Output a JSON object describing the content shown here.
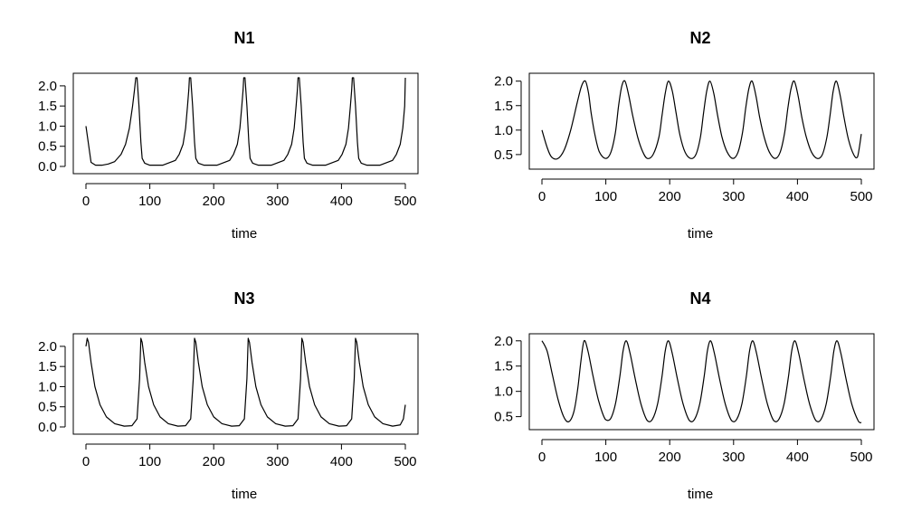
{
  "chart_data": [
    {
      "type": "line",
      "title": "N1",
      "xlabel": "time",
      "ylabel": "",
      "xlim": [
        0,
        500
      ],
      "ylim": [
        0,
        2.2
      ],
      "xticks": [
        "0",
        "100",
        "200",
        "300",
        "400",
        "500"
      ],
      "yticks": [
        "0.0",
        "0.5",
        "1.0",
        "1.5",
        "2.0"
      ],
      "grid": false,
      "shape": "spike",
      "series": [
        {
          "x": [
            0,
            8,
            15,
            25,
            35,
            45,
            55,
            62,
            68,
            73,
            76,
            78,
            80,
            83,
            86,
            88,
            92,
            100,
            120,
            140,
            146,
            152,
            156,
            159,
            161,
            162,
            164,
            167,
            170,
            172,
            176,
            185,
            205,
            225,
            231,
            237,
            241,
            244,
            246,
            247,
            249,
            252,
            255,
            257,
            261,
            270,
            290,
            310,
            316,
            322,
            326,
            329,
            331,
            332,
            334,
            337,
            340,
            342,
            346,
            355,
            375,
            395,
            401,
            407,
            411,
            414,
            416,
            417,
            419,
            422,
            425,
            427,
            431,
            440,
            460,
            480,
            486,
            492,
            496,
            499,
            500
          ],
          "y": [
            1.0,
            0.1,
            0.03,
            0.03,
            0.06,
            0.12,
            0.3,
            0.55,
            0.95,
            1.5,
            1.9,
            2.2,
            2.2,
            1.5,
            0.6,
            0.2,
            0.08,
            0.03,
            0.03,
            0.15,
            0.3,
            0.55,
            0.95,
            1.5,
            1.9,
            2.2,
            2.2,
            1.5,
            0.6,
            0.2,
            0.08,
            0.03,
            0.03,
            0.15,
            0.3,
            0.55,
            0.95,
            1.5,
            1.9,
            2.2,
            2.2,
            1.5,
            0.6,
            0.2,
            0.08,
            0.03,
            0.03,
            0.15,
            0.3,
            0.55,
            0.95,
            1.5,
            1.9,
            2.2,
            2.2,
            1.5,
            0.6,
            0.2,
            0.08,
            0.03,
            0.03,
            0.15,
            0.3,
            0.55,
            0.95,
            1.5,
            1.9,
            2.2,
            2.2,
            1.5,
            0.6,
            0.2,
            0.08,
            0.03,
            0.03,
            0.15,
            0.3,
            0.55,
            0.95,
            1.5,
            2.2
          ]
        }
      ]
    },
    {
      "type": "line",
      "title": "N2",
      "xlabel": "time",
      "ylabel": "",
      "xlim": [
        0,
        500
      ],
      "ylim": [
        0.35,
        2.05
      ],
      "xticks": [
        "0",
        "100",
        "200",
        "300",
        "400",
        "500"
      ],
      "yticks": [
        "0.5",
        "1.0",
        "1.5",
        "2.0"
      ],
      "grid": false,
      "shape": "smooth",
      "series": [
        {
          "x": [
            0,
            8,
            15,
            25,
            35,
            45,
            55,
            62,
            68,
            73,
            77,
            83,
            90,
            100,
            108,
            115,
            120,
            125,
            130,
            136,
            142,
            150,
            158,
            165,
            174,
            183,
            188,
            193,
            198,
            204,
            210,
            216,
            224,
            233,
            241,
            248,
            253,
            258,
            263,
            269,
            275,
            282,
            290,
            299,
            307,
            314,
            319,
            324,
            329,
            335,
            341,
            348,
            356,
            365,
            373,
            380,
            385,
            390,
            395,
            401,
            407,
            414,
            422,
            431,
            439,
            446,
            451,
            456,
            461,
            467,
            473,
            480,
            488,
            494,
            500
          ],
          "y": [
            1.0,
            0.65,
            0.45,
            0.42,
            0.6,
            1.0,
            1.55,
            1.9,
            2.0,
            1.75,
            1.35,
            0.9,
            0.55,
            0.42,
            0.55,
            0.95,
            1.5,
            1.9,
            2.0,
            1.7,
            1.3,
            0.85,
            0.55,
            0.42,
            0.5,
            0.85,
            1.3,
            1.75,
            2.0,
            1.8,
            1.35,
            0.9,
            0.55,
            0.42,
            0.5,
            0.85,
            1.35,
            1.8,
            2.0,
            1.75,
            1.3,
            0.85,
            0.55,
            0.42,
            0.55,
            0.95,
            1.45,
            1.85,
            2.0,
            1.7,
            1.25,
            0.85,
            0.55,
            0.42,
            0.55,
            0.95,
            1.45,
            1.85,
            2.0,
            1.7,
            1.25,
            0.85,
            0.55,
            0.42,
            0.5,
            0.85,
            1.3,
            1.8,
            2.0,
            1.7,
            1.25,
            0.8,
            0.5,
            0.45,
            0.92
          ]
        }
      ]
    },
    {
      "type": "line",
      "title": "N3",
      "xlabel": "time",
      "ylabel": "",
      "xlim": [
        0,
        500
      ],
      "ylim": [
        0,
        2.2
      ],
      "xticks": [
        "0",
        "100",
        "200",
        "300",
        "400",
        "500"
      ],
      "yticks": [
        "0.0",
        "0.5",
        "1.0",
        "1.5",
        "2.0"
      ],
      "grid": false,
      "shape": "spike",
      "series": [
        {
          "x": [
            0,
            2,
            4,
            8,
            14,
            22,
            32,
            45,
            60,
            72,
            80,
            84,
            86,
            88,
            92,
            98,
            106,
            116,
            129,
            144,
            156,
            164,
            168,
            170,
            172,
            176,
            182,
            190,
            200,
            213,
            228,
            240,
            248,
            252,
            254,
            256,
            260,
            266,
            274,
            284,
            297,
            312,
            324,
            332,
            336,
            338,
            340,
            344,
            350,
            358,
            368,
            381,
            396,
            408,
            416,
            420,
            422,
            424,
            428,
            434,
            442,
            452,
            465,
            480,
            492,
            497,
            500
          ],
          "y": [
            2.0,
            2.2,
            2.1,
            1.6,
            1.0,
            0.55,
            0.25,
            0.08,
            0.02,
            0.03,
            0.2,
            1.2,
            2.2,
            2.1,
            1.6,
            1.0,
            0.55,
            0.25,
            0.08,
            0.02,
            0.03,
            0.2,
            1.2,
            2.2,
            2.1,
            1.6,
            1.0,
            0.55,
            0.25,
            0.08,
            0.02,
            0.03,
            0.2,
            1.2,
            2.2,
            2.1,
            1.6,
            1.0,
            0.55,
            0.25,
            0.08,
            0.02,
            0.03,
            0.2,
            1.2,
            2.2,
            2.1,
            1.6,
            1.0,
            0.55,
            0.25,
            0.08,
            0.02,
            0.03,
            0.2,
            1.2,
            2.2,
            2.1,
            1.6,
            1.0,
            0.55,
            0.25,
            0.08,
            0.02,
            0.05,
            0.2,
            0.55
          ]
        }
      ]
    },
    {
      "type": "line",
      "title": "N4",
      "xlabel": "time",
      "ylabel": "",
      "xlim": [
        0,
        500
      ],
      "ylim": [
        0.35,
        2.05
      ],
      "xticks": [
        "0",
        "100",
        "200",
        "300",
        "400",
        "500"
      ],
      "yticks": [
        "0.5",
        "1.0",
        "1.5",
        "2.0"
      ],
      "grid": false,
      "shape": "smooth",
      "series": [
        {
          "x": [
            0,
            8,
            16,
            25,
            34,
            42,
            50,
            56,
            61,
            66,
            72,
            80,
            89,
            99,
            107,
            115,
            122,
            127,
            132,
            138,
            146,
            155,
            165,
            173,
            181,
            188,
            193,
            198,
            204,
            212,
            221,
            231,
            239,
            247,
            254,
            259,
            264,
            270,
            278,
            287,
            297,
            305,
            313,
            320,
            325,
            330,
            336,
            344,
            353,
            363,
            371,
            379,
            386,
            391,
            396,
            402,
            410,
            419,
            429,
            437,
            445,
            452,
            457,
            462,
            468,
            476,
            485,
            495,
            500
          ],
          "y": [
            2.0,
            1.8,
            1.35,
            0.85,
            0.5,
            0.4,
            0.6,
            1.05,
            1.6,
            2.0,
            1.8,
            1.3,
            0.8,
            0.45,
            0.45,
            0.75,
            1.3,
            1.8,
            2.0,
            1.75,
            1.25,
            0.75,
            0.42,
            0.45,
            0.75,
            1.3,
            1.8,
            2.0,
            1.75,
            1.25,
            0.75,
            0.42,
            0.45,
            0.75,
            1.3,
            1.8,
            2.0,
            1.75,
            1.25,
            0.75,
            0.42,
            0.45,
            0.75,
            1.3,
            1.8,
            2.0,
            1.75,
            1.25,
            0.75,
            0.42,
            0.45,
            0.75,
            1.3,
            1.8,
            2.0,
            1.75,
            1.25,
            0.75,
            0.42,
            0.45,
            0.75,
            1.3,
            1.8,
            2.0,
            1.75,
            1.25,
            0.75,
            0.42,
            0.38
          ]
        }
      ]
    }
  ]
}
